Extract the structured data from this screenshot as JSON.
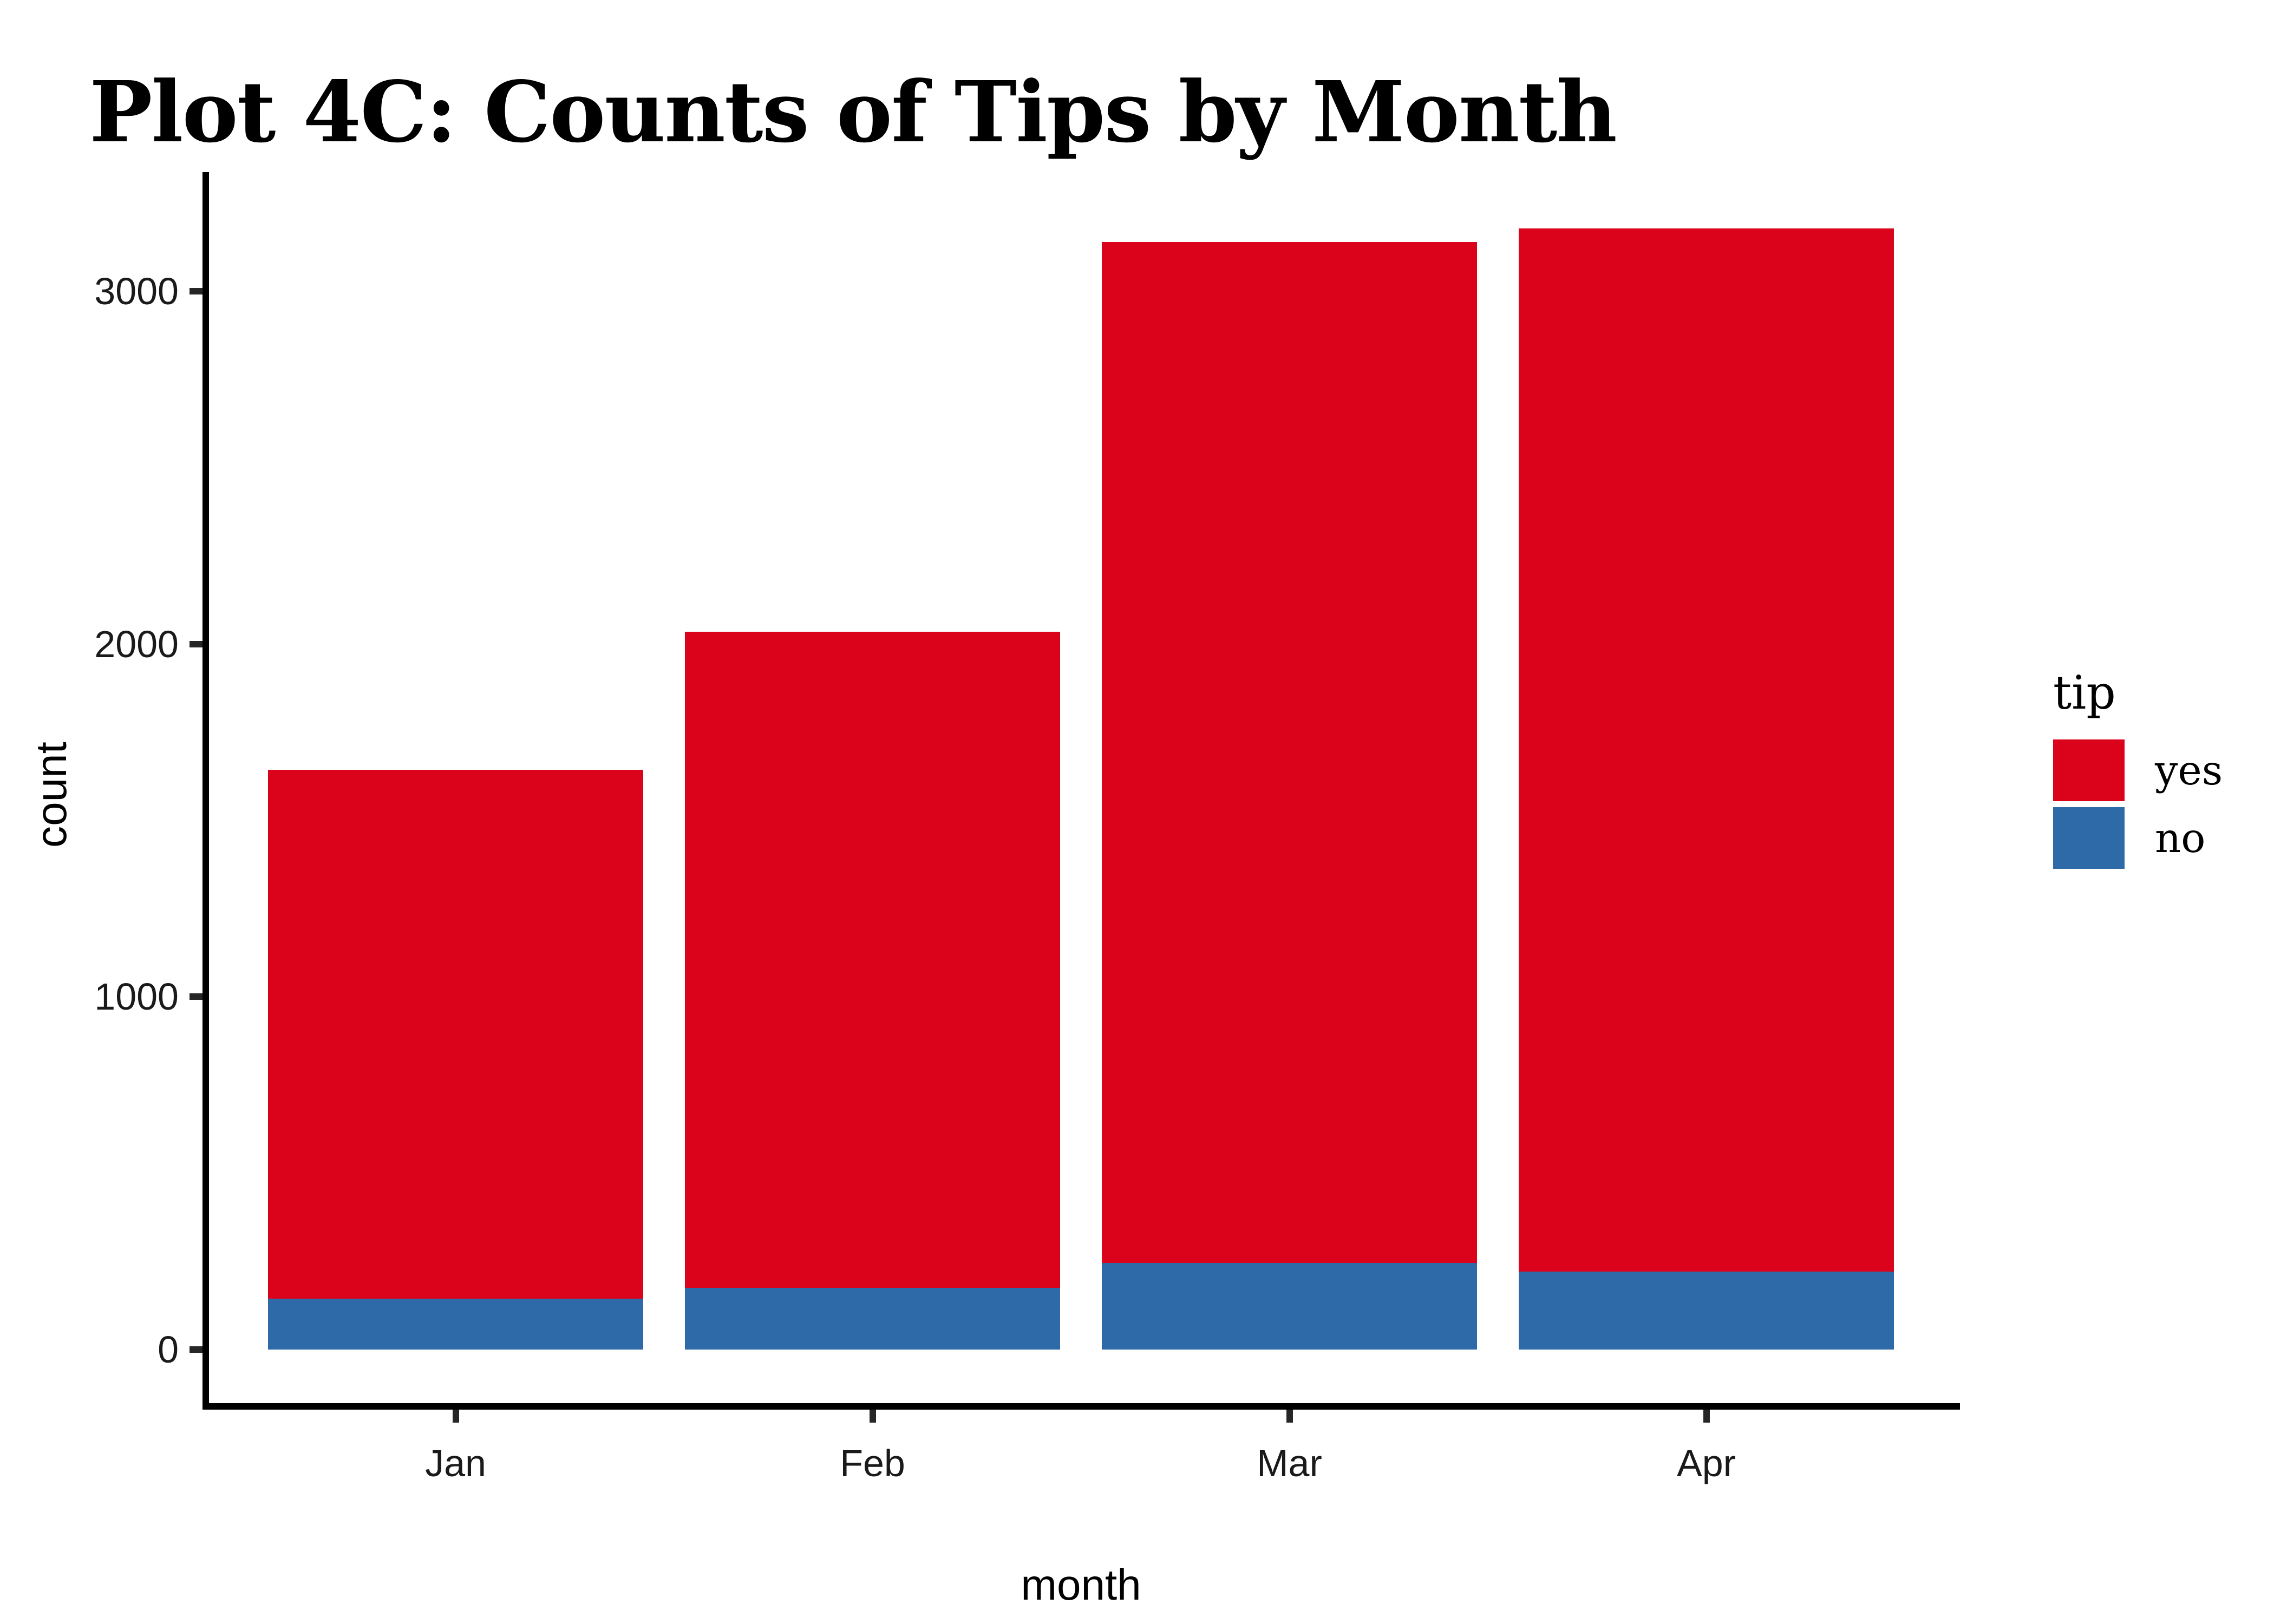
{
  "title": "Plot 4C: Counts of Tips by Month",
  "axes": {
    "x_label": "month",
    "y_label": "count",
    "x_tick_labels": [
      "Jan",
      "Feb",
      "Mar",
      "Apr"
    ],
    "y_tick_labels": [
      "0",
      "1000",
      "2000",
      "3000"
    ]
  },
  "legend": {
    "title": "tip",
    "items": [
      {
        "label": "yes",
        "color": "#DB021B"
      },
      {
        "label": "no",
        "color": "#2D6AA7"
      }
    ]
  },
  "chart_data": {
    "type": "bar",
    "stacked": true,
    "title": "Plot 4C: Counts of Tips by Month",
    "xlabel": "month",
    "ylabel": "count",
    "categories": [
      "Jan",
      "Feb",
      "Mar",
      "Apr"
    ],
    "series": [
      {
        "name": "yes",
        "color": "#DB021B",
        "values": [
          1499,
          1860,
          2894,
          2957
        ]
      },
      {
        "name": "no",
        "color": "#2D6AA7",
        "values": [
          144,
          175,
          245,
          221
        ]
      }
    ],
    "totals": [
      1643,
      2035,
      3139,
      3178
    ],
    "y_ticks": [
      0,
      1000,
      2000,
      3000
    ],
    "ylim": [
      0,
      3337
    ],
    "grid": "off",
    "legend_title": "tip",
    "legend_position": "right"
  }
}
